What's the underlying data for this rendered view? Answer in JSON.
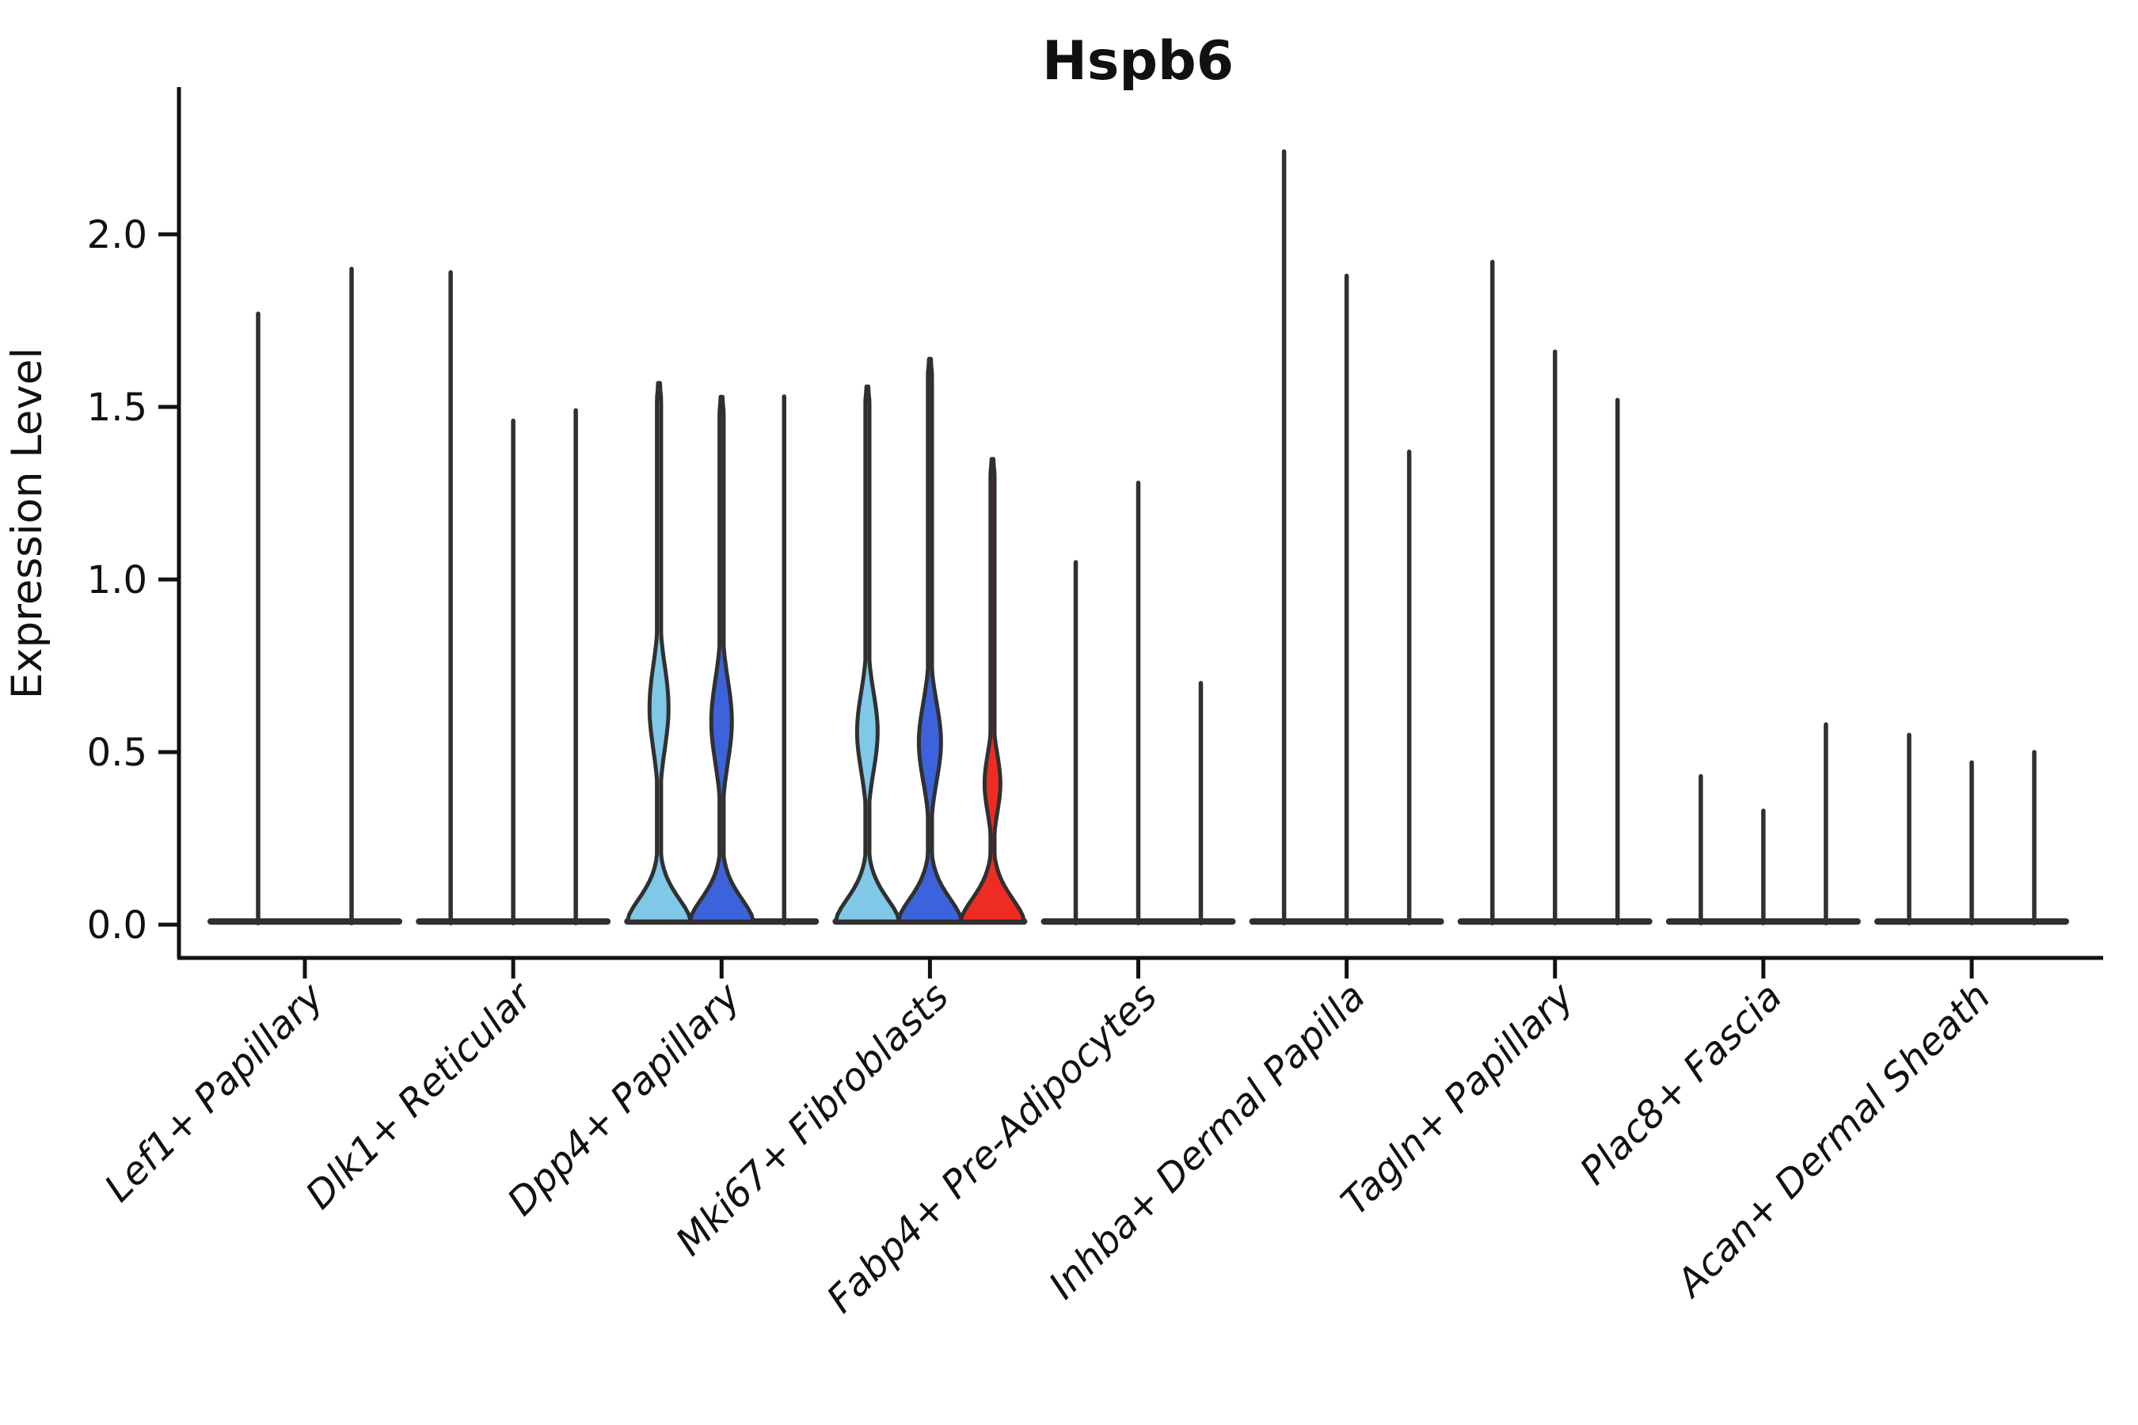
{
  "palette": {
    "lightblue": "#7FC8E8",
    "blue": "#3C63DB",
    "red": "#EF2C23",
    "ink": "#111111",
    "violin_stroke": "#303030"
  },
  "chart_data": {
    "type": "violin",
    "title": "Hspb6",
    "ylabel": "Expression Level",
    "ylim": [
      0,
      2.4
    ],
    "grid": false,
    "legend": "none",
    "yticks": [
      {
        "value": 0.0,
        "label": "0.0"
      },
      {
        "value": 0.5,
        "label": "0.5"
      },
      {
        "value": 1.0,
        "label": "1.0"
      },
      {
        "value": 1.5,
        "label": "1.5"
      },
      {
        "value": 2.0,
        "label": "2.0"
      }
    ],
    "groups": [
      {
        "label": "Lef1+ Papillary",
        "violins": [
          {
            "max": 1.77,
            "style": "spike"
          },
          {
            "max": 1.9,
            "style": "spike"
          }
        ]
      },
      {
        "label": "Dlk1+ Reticular",
        "violins": [
          {
            "max": 1.89,
            "style": "spike"
          },
          {
            "max": 1.46,
            "style": "spike"
          },
          {
            "max": 1.49,
            "style": "spike"
          }
        ]
      },
      {
        "label": "Dpp4+ Papillary",
        "violins": [
          {
            "max": 1.56,
            "style": "filled",
            "color": "lightblue",
            "base_halfwidth": 40,
            "bulge": {
              "center": 0.62,
              "halfwidth": 12,
              "sigma": 0.17
            }
          },
          {
            "max": 1.52,
            "style": "filled",
            "color": "blue",
            "base_halfwidth": 40,
            "bulge": {
              "center": 0.58,
              "halfwidth": 13,
              "sigma": 0.17
            }
          },
          {
            "max": 1.53,
            "style": "spike"
          }
        ]
      },
      {
        "label": "Mki67+ Fibroblasts",
        "violins": [
          {
            "max": 1.55,
            "style": "filled",
            "color": "lightblue",
            "base_halfwidth": 40,
            "bulge": {
              "center": 0.55,
              "halfwidth": 13,
              "sigma": 0.16
            }
          },
          {
            "max": 1.63,
            "style": "filled",
            "color": "blue",
            "base_halfwidth": 40,
            "bulge": {
              "center": 0.52,
              "halfwidth": 14,
              "sigma": 0.16
            }
          },
          {
            "max": 1.34,
            "style": "filled",
            "color": "red",
            "base_halfwidth": 40,
            "bulge": {
              "center": 0.4,
              "halfwidth": 10,
              "sigma": 0.12
            }
          }
        ]
      },
      {
        "label": "Fabp4+ Pre-Adipocytes",
        "violins": [
          {
            "max": 1.05,
            "style": "spike"
          },
          {
            "max": 1.28,
            "style": "spike"
          },
          {
            "max": 0.7,
            "style": "spike"
          }
        ]
      },
      {
        "label": "Inhba+ Dermal Papilla",
        "violins": [
          {
            "max": 2.24,
            "style": "spike"
          },
          {
            "max": 1.88,
            "style": "spike"
          },
          {
            "max": 1.37,
            "style": "spike"
          }
        ]
      },
      {
        "label": "Tagln+ Papillary",
        "violins": [
          {
            "max": 1.92,
            "style": "spike"
          },
          {
            "max": 1.66,
            "style": "spike"
          },
          {
            "max": 1.52,
            "style": "spike"
          }
        ]
      },
      {
        "label": "Plac8+ Fascia",
        "violins": [
          {
            "max": 0.43,
            "style": "spike"
          },
          {
            "max": 0.33,
            "style": "spike"
          },
          {
            "max": 0.58,
            "style": "spike"
          }
        ]
      },
      {
        "label": "Acan+ Dermal Sheath",
        "violins": [
          {
            "max": 0.55,
            "style": "spike"
          },
          {
            "max": 0.47,
            "style": "spike"
          },
          {
            "max": 0.5,
            "style": "spike"
          }
        ]
      }
    ]
  }
}
